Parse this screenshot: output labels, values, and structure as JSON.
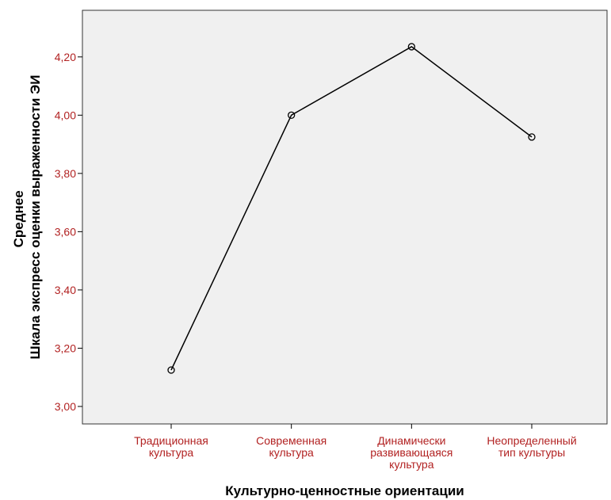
{
  "chart_data": {
    "type": "line",
    "categories": [
      [
        "Традиционная",
        "культура"
      ],
      [
        "Современная",
        "культура"
      ],
      [
        "Динамически",
        "развивающаяся",
        "культура"
      ],
      [
        "Неопределенный",
        "тип культуры"
      ]
    ],
    "series": [
      {
        "values": [
          3.125,
          4.0,
          4.235,
          3.925
        ]
      }
    ],
    "yticks": [
      "3,00",
      "3,20",
      "3,40",
      "3,60",
      "3,80",
      "4,00",
      "4,20"
    ],
    "ylim": [
      2.94,
      4.36
    ],
    "xlabel": "Культурно-ценностные ориентации",
    "ylabel": [
      "Среднее",
      "Шкала экспресс оценки выраженности ЭИ"
    ],
    "grid": false,
    "colors": {
      "line": "#000000",
      "plot_bg": "#f0f0f0",
      "tick_text": "#b22222"
    }
  }
}
